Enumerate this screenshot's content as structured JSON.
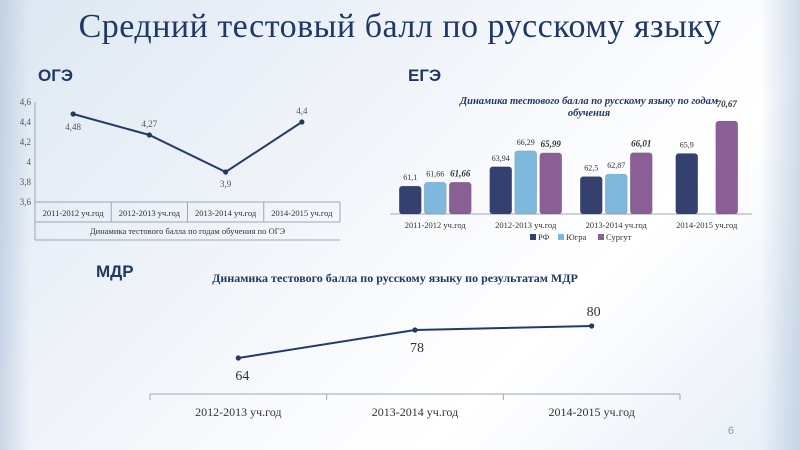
{
  "slide": {
    "title": "Средний тестовый балл по русскому языку",
    "page_number": "6"
  },
  "sections": {
    "oge": "ОГЭ",
    "ege": "ЕГЭ",
    "mdr": "МДР"
  },
  "colors": {
    "title": "#1f3864",
    "line": "#243a66",
    "rf": "#34406e",
    "yugra": "#7eb8dc",
    "surgut": "#8a5f95"
  },
  "chart_data": [
    {
      "id": "oge",
      "type": "line",
      "title": "",
      "xlabel": "Динамика тестового балла по годам обучения по ОГЭ",
      "ylabel": "",
      "categories": [
        "2011-2012 уч.год",
        "2012-2013 уч.год",
        "2013-2014 уч.год",
        "2014-2015 уч.год"
      ],
      "values": [
        4.48,
        4.27,
        3.9,
        4.4
      ],
      "data_labels": [
        "4,48",
        "4,27",
        "3,9",
        "4,4"
      ],
      "ylim": [
        3.6,
        4.6
      ],
      "yticks": [
        3.6,
        3.8,
        4,
        4.2,
        4.4,
        4.6
      ],
      "ytick_labels": [
        "3,6",
        "3,8",
        "4",
        "4,2",
        "4,4",
        "4,6"
      ],
      "grid": false
    },
    {
      "id": "ege",
      "type": "bar",
      "title": "Динамика тестового балла по русскому языку по годам обучения",
      "categories": [
        "2011-2012 уч.год",
        "2012-2013 уч.год",
        "2013-2014 уч.год",
        "2014-2015 уч.год"
      ],
      "series": [
        {
          "name": "РФ",
          "values": [
            61.1,
            63.94,
            62.5,
            65.9
          ],
          "labels": [
            "61,1",
            "63,94",
            "62,5",
            "65,9"
          ]
        },
        {
          "name": "Югра",
          "values": [
            61.66,
            66.29,
            62.87,
            null
          ],
          "labels": [
            "61,66",
            "66,29",
            "62,87",
            ""
          ]
        },
        {
          "name": "Сургут",
          "values": [
            61.66,
            65.99,
            66.01,
            70.67
          ],
          "labels": [
            "61,66",
            "65,99",
            "66,01",
            "70,67"
          ]
        }
      ],
      "ylim": [
        57,
        72
      ],
      "legend": "bottom",
      "grid": false
    },
    {
      "id": "mdr",
      "type": "line",
      "title": "Динамика тестового балла по русскому языку по результатам МДР",
      "categories": [
        "2012-2013 уч.год",
        "2013-2014 уч.год",
        "2014-2015 уч.год"
      ],
      "values": [
        64,
        78,
        80
      ],
      "data_labels": [
        "64",
        "78",
        "80"
      ],
      "ylim": [
        0,
        100
      ],
      "grid": false
    }
  ]
}
